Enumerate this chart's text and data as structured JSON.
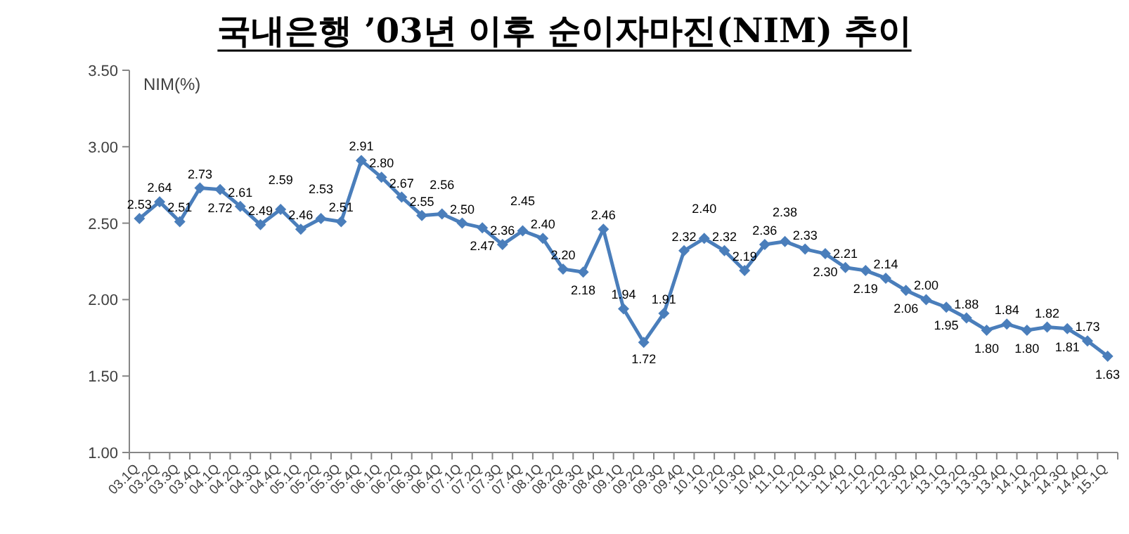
{
  "chart_data": {
    "type": "line",
    "title": "국내은행 ’03년 이후 순이자마진(NIM) 추이",
    "ylabel": "NIM(%)",
    "categories": [
      "03.1Q",
      "03.2Q",
      "03.3Q",
      "03.4Q",
      "04.1Q",
      "04.2Q",
      "04.3Q",
      "04.4Q",
      "05.1Q",
      "05.2Q",
      "05.3Q",
      "05.4Q",
      "06.1Q",
      "06.2Q",
      "06.3Q",
      "06.4Q",
      "07.1Q",
      "07.2Q",
      "07.3Q",
      "07.4Q",
      "08.1Q",
      "08.2Q",
      "08.3Q",
      "08.4Q",
      "09.1Q",
      "09.2Q",
      "09.3Q",
      "09.4Q",
      "10.1Q",
      "10.2Q",
      "10.3Q",
      "10.4Q",
      "11.1Q",
      "11.2Q",
      "11.3Q",
      "11.4Q",
      "12.1Q",
      "12.2Q",
      "12.3Q",
      "12.4Q",
      "13.1Q",
      "13.2Q",
      "13.3Q",
      "13.4Q",
      "14.1Q",
      "14.2Q",
      "14.3Q",
      "14.4Q",
      "15.1Q"
    ],
    "series": [
      {
        "color": "#4a7ebb",
        "values": [
          2.53,
          2.64,
          2.51,
          2.73,
          2.72,
          2.61,
          2.49,
          2.59,
          2.46,
          2.53,
          2.51,
          2.91,
          2.8,
          2.67,
          2.55,
          2.56,
          2.5,
          2.47,
          2.36,
          2.45,
          2.4,
          2.2,
          2.18,
          2.46,
          1.94,
          1.72,
          1.91,
          2.32,
          2.4,
          2.32,
          2.19,
          2.36,
          2.38,
          2.33,
          2.3,
          2.21,
          2.19,
          2.14,
          2.06,
          2.0,
          1.95,
          1.88,
          1.8,
          1.84,
          1.8,
          1.82,
          1.81,
          1.73,
          1.63
        ],
        "value_labels": [
          "2.53",
          "2.64",
          "2.51",
          "2.73",
          "2.72",
          "2.61",
          "2.49",
          "2.59",
          "2.46",
          "2.53",
          "2.51",
          "2.91",
          "2.80",
          "2.67",
          "2.55",
          "2.56",
          "2.50",
          "2.47",
          "2.36",
          "2.45",
          "2.40",
          "2.20",
          "2.18",
          "2.46",
          "1.94",
          "1.72",
          "1.91",
          "2.32",
          "2.40",
          "2.32",
          "2.19",
          "2.36",
          "2.38",
          "2.33",
          "2.30",
          "2.21",
          "2.19",
          "2.14",
          "2.06",
          "2.00",
          "1.95",
          "1.88",
          "1.80",
          "1.84",
          "1.80",
          "1.82",
          "1.81",
          "1.73",
          "1.63"
        ]
      }
    ],
    "ylim": [
      1.0,
      3.5
    ],
    "yticks": [
      {
        "value": 1.0,
        "label": "1.00"
      },
      {
        "value": 1.5,
        "label": "1.50"
      },
      {
        "value": 2.0,
        "label": "2.00"
      },
      {
        "value": 2.5,
        "label": "2.50"
      },
      {
        "value": 3.0,
        "label": "3.00"
      },
      {
        "value": 3.5,
        "label": "3.50"
      }
    ],
    "marker": "diamond",
    "line_style": "solid",
    "grid": false
  }
}
